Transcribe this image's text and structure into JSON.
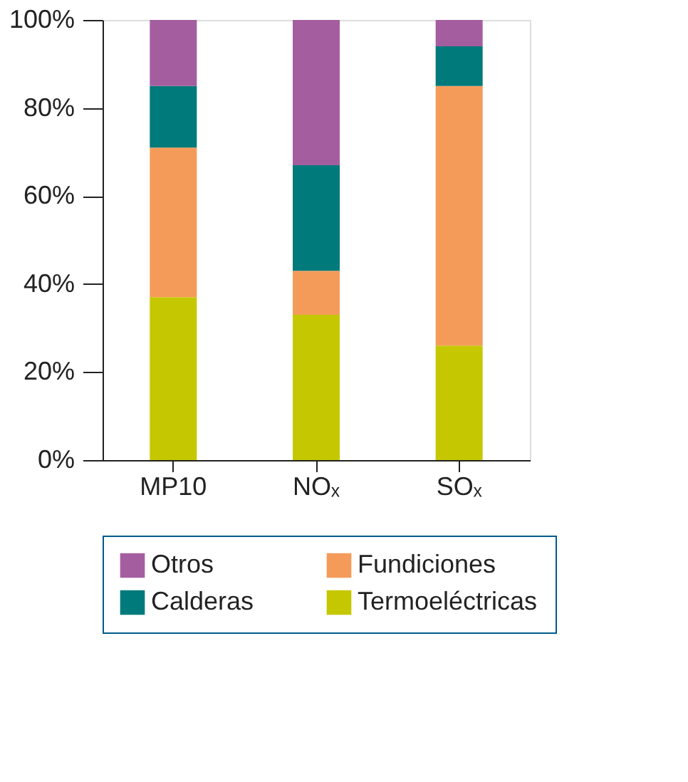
{
  "chart_data": {
    "type": "bar",
    "stacked": true,
    "categories": [
      "MP10",
      "NOₓ",
      "SOₓ"
    ],
    "series": [
      {
        "name": "Termoeléctricas",
        "color": "#c5c800",
        "values": [
          37,
          33,
          26
        ]
      },
      {
        "name": "Fundiciones",
        "color": "#f59b5a",
        "values": [
          34,
          10,
          59
        ]
      },
      {
        "name": "Calderas",
        "color": "#007a7a",
        "values": [
          14,
          24,
          9
        ]
      },
      {
        "name": "Otros",
        "color": "#a45ea0",
        "values": [
          15,
          33,
          6
        ]
      }
    ],
    "ylim": [
      0,
      100
    ],
    "yticks": [
      {
        "value": 0,
        "label": "0%"
      },
      {
        "value": 20,
        "label": "20%"
      },
      {
        "value": 40,
        "label": "40%"
      },
      {
        "value": 60,
        "label": "60%"
      },
      {
        "value": 80,
        "label": "80%"
      },
      {
        "value": 100,
        "label": "100%"
      }
    ],
    "grid": false,
    "legend": "bottom"
  }
}
